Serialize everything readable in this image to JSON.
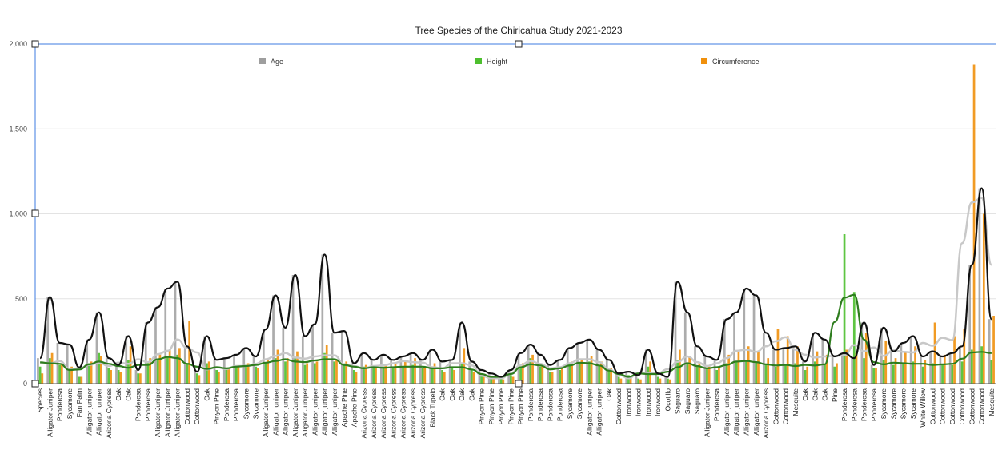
{
  "chart_data": {
    "type": "bar",
    "title": "Tree Species of the Chiricahua Study 2021-2023",
    "xlabel": "",
    "ylabel": "",
    "ylim": [
      0,
      2000
    ],
    "y_ticks": [
      "0",
      "500",
      "1,000",
      "1,500",
      "2,000"
    ],
    "y_tick_values": [
      0,
      500,
      1000,
      1500,
      2000
    ],
    "grid": true,
    "legend_position": "top",
    "colors": {
      "Age": "#9e9e9e",
      "Height": "#4dbf2e",
      "Circumference": "#f0900c",
      "avg_black": "#111111",
      "avg_green": "#2e7d1e",
      "avg_light": "#c8c8c8",
      "axis": "#3d7be0"
    },
    "categories": [
      "Species",
      "Alligator Juniper",
      "Ponderosa",
      "Sycamore",
      "Fan Palm",
      "Alligator juniper",
      "Alligator juniper",
      "Arizona Cypress",
      "Oak",
      "Oak",
      "Ponderosa",
      "Ponderosa",
      "Alligator Juniper",
      "Alligator Juniper",
      "Alligator Juniper",
      "Cottonwood",
      "Cottonwood",
      "Oak",
      "Pinyon Pine",
      "Ponderosa",
      "Ponderosa",
      "Sycamore",
      "Sycamore",
      "Alligator Juniper",
      "Alligator juniper",
      "Alligator juniper",
      "Alligator Juniper",
      "Alligator Juniper",
      "Alligator juniper",
      "Alligator juniper",
      "Alligator juniper",
      "Apache Pine",
      "Apache Pine",
      "Arizona Cypress",
      "Arizona Cypress",
      "Arizona Cypress",
      "Arizona Cypress",
      "Arizona Cypress",
      "Arizona Cypress",
      "Arizona Cypress",
      "Black Tupelo",
      "Oak",
      "Oak",
      "Oak",
      "Oak",
      "Pinyon Pine",
      "Pinyon Pine",
      "Pinyon Pine",
      "Pinyon Pine",
      "Pinyon Pine",
      "Ponderosa",
      "Ponderosa",
      "Ponderosa",
      "Ponderosa",
      "Sycamore",
      "Sycamore",
      "Alligator juniper",
      "Alligator juniper",
      "Oak",
      "Cottonwood",
      "Ironwood",
      "Ironwood",
      "Ironwood",
      "Ironwood",
      "Ocotillo",
      "Saguaro",
      "Saguaro",
      "Saguaro",
      "Alligator Juniper",
      "Ponderosa",
      "Alligator juniper",
      "Alligator juniper",
      "Alligator juniper",
      "Alligator juniper",
      "Arizona Cypress",
      "Cottonwood",
      "Cottonwood",
      "Mesquite",
      "Oak",
      "Oak",
      "Oak",
      "Pine",
      "Ponderosa",
      "Ponderosa",
      "Ponderosa",
      "Ponderosa",
      "Sycamore",
      "Sycamore",
      "Sycamore",
      "Sycamore",
      "White Willow",
      "Cottonwood",
      "Cottonwood",
      "Cottonwood",
      "Cottonwood",
      "Cottonwood",
      "Cottonwood",
      "Mesquite"
    ],
    "series": [
      {
        "name": "Age",
        "values": [
          150,
          510,
          240,
          230,
          95,
          260,
          420,
          150,
          110,
          280,
          80,
          360,
          450,
          560,
          600,
          220,
          70,
          280,
          140,
          150,
          170,
          210,
          160,
          320,
          520,
          330,
          640,
          280,
          350,
          760,
          300,
          310,
          120,
          180,
          140,
          170,
          140,
          160,
          180,
          140,
          200,
          130,
          140,
          360,
          130,
          80,
          60,
          40,
          80,
          180,
          230,
          170,
          110,
          140,
          210,
          240,
          260,
          200,
          140,
          60,
          70,
          50,
          200,
          60,
          40,
          600,
          420,
          220,
          160,
          140,
          380,
          420,
          560,
          520,
          300,
          200,
          210,
          220,
          130,
          300,
          260,
          160,
          180,
          150,
          360,
          110,
          330,
          190,
          240,
          280,
          160,
          190,
          160,
          180,
          220,
          700,
          1150,
          380
        ]
      },
      {
        "name": "Height",
        "values": [
          100,
          150,
          110,
          90,
          40,
          120,
          180,
          90,
          80,
          140,
          60,
          130,
          140,
          160,
          170,
          120,
          60,
          120,
          80,
          90,
          100,
          110,
          100,
          120,
          150,
          130,
          150,
          110,
          120,
          180,
          130,
          120,
          80,
          100,
          90,
          100,
          90,
          100,
          110,
          90,
          100,
          80,
          90,
          120,
          80,
          50,
          40,
          30,
          50,
          90,
          150,
          100,
          70,
          80,
          120,
          120,
          130,
          110,
          80,
          40,
          50,
          30,
          100,
          40,
          30,
          140,
          120,
          100,
          90,
          80,
          120,
          130,
          140,
          130,
          110,
          100,
          110,
          120,
          80,
          130,
          110,
          100,
          880,
          540,
          150,
          90,
          140,
          110,
          120,
          130,
          100,
          120,
          110,
          110,
          130,
          200,
          220,
          140
        ]
      },
      {
        "name": "Circumference",
        "values": [
          60,
          180,
          120,
          100,
          40,
          130,
          160,
          80,
          70,
          220,
          60,
          150,
          170,
          200,
          210,
          370,
          50,
          130,
          70,
          90,
          100,
          120,
          90,
          140,
          200,
          150,
          190,
          120,
          130,
          230,
          140,
          130,
          70,
          110,
          90,
          110,
          120,
          130,
          150,
          100,
          120,
          70,
          80,
          210,
          70,
          40,
          30,
          25,
          40,
          120,
          170,
          110,
          70,
          90,
          130,
          140,
          160,
          130,
          90,
          30,
          40,
          25,
          130,
          30,
          25,
          200,
          160,
          120,
          100,
          90,
          170,
          190,
          220,
          190,
          150,
          320,
          280,
          220,
          100,
          190,
          170,
          120,
          200,
          180,
          300,
          90,
          250,
          150,
          190,
          220,
          140,
          360,
          170,
          280,
          320,
          1880,
          1000,
          400
        ]
      }
    ]
  }
}
